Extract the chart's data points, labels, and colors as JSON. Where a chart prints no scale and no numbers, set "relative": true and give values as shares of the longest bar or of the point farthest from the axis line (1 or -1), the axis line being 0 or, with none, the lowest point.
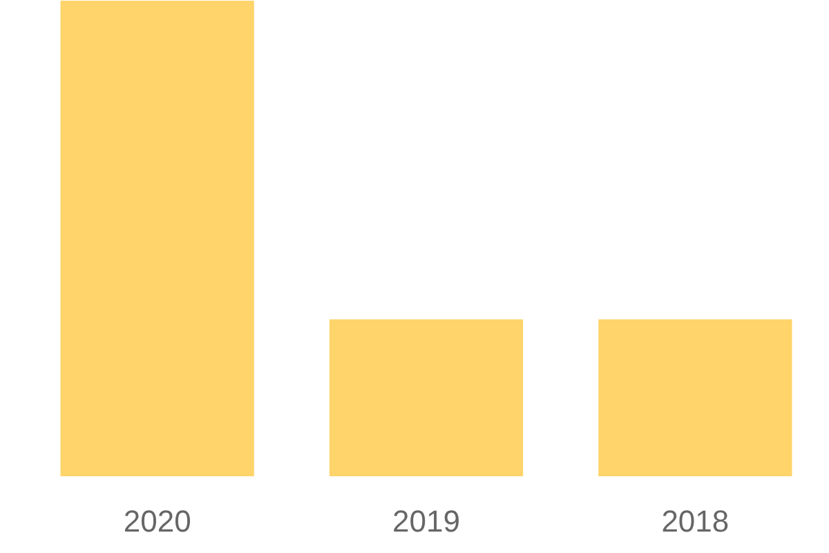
{
  "chart_data": {
    "type": "bar",
    "relative": true,
    "categories": [
      "2020",
      "2019",
      "2018"
    ],
    "values": [
      1,
      0.33,
      0.33
    ],
    "color": "#fed46b"
  }
}
